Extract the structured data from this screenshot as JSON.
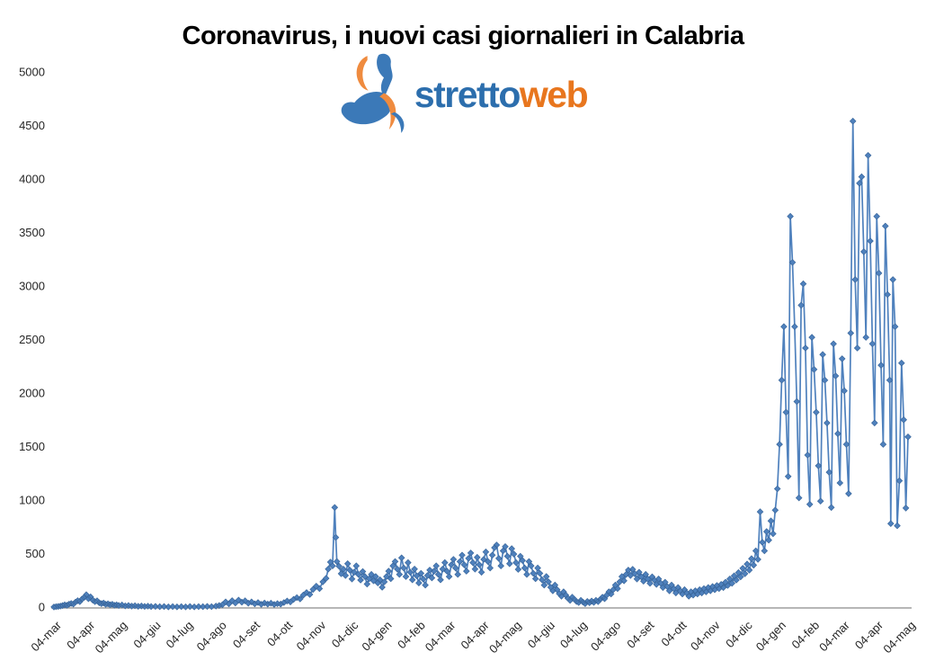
{
  "header": {
    "title": "Coronavirus, i nuovi casi giornalieri in Calabria"
  },
  "logo": {
    "text_primary": "stretto",
    "text_secondary": "web",
    "primary_color": "#2c6ead",
    "secondary_color": "#e8761e",
    "graphic_blue": "#3b79b8",
    "graphic_orange": "#ef8b3f"
  },
  "chart_data": {
    "type": "line",
    "title": "Coronavirus, i nuovi casi giornalieri in Calabria",
    "series_name": "nuovi casi giornalieri",
    "marker": "diamond",
    "line_color": "#4F81BD",
    "marker_edge_color": "#3A679C",
    "axis_line_color": "#8C8C8C",
    "label_color": "#262626",
    "grid": false,
    "legend": false,
    "ylim": [
      0,
      5000
    ],
    "y_ticks": [
      0,
      500,
      1000,
      1500,
      2000,
      2500,
      3000,
      3500,
      4000,
      4500,
      5000
    ],
    "x_tick_labels": [
      "04-mar",
      "04-apr",
      "04-mag",
      "04-giu",
      "04-lug",
      "04-ago",
      "04-set",
      "04-ott",
      "04-nov",
      "04-dic",
      "04-gen",
      "04-feb",
      "04-mar",
      "04-apr",
      "04-mag",
      "04-giu",
      "04-lug",
      "04-ago",
      "04-set",
      "04-ott",
      "04-nov",
      "04-dic",
      "04-gen",
      "04-feb",
      "04-mar",
      "04-apr",
      "04-mag"
    ],
    "x_tick_days": [
      0,
      31,
      61,
      92,
      122,
      153,
      184,
      214,
      245,
      275,
      306,
      337,
      365,
      396,
      426,
      457,
      487,
      518,
      549,
      579,
      610,
      640,
      671,
      702,
      730,
      761,
      791
    ],
    "x_max_day": 791,
    "points": [
      [
        0,
        1
      ],
      [
        2,
        3
      ],
      [
        4,
        6
      ],
      [
        6,
        9
      ],
      [
        8,
        14
      ],
      [
        10,
        20
      ],
      [
        12,
        16
      ],
      [
        14,
        27
      ],
      [
        16,
        34
      ],
      [
        18,
        28
      ],
      [
        20,
        46
      ],
      [
        22,
        60
      ],
      [
        24,
        50
      ],
      [
        26,
        75
      ],
      [
        28,
        90
      ],
      [
        30,
        115
      ],
      [
        32,
        78
      ],
      [
        34,
        95
      ],
      [
        36,
        65
      ],
      [
        38,
        50
      ],
      [
        40,
        58
      ],
      [
        42,
        40
      ],
      [
        44,
        32
      ],
      [
        46,
        38
      ],
      [
        48,
        26
      ],
      [
        50,
        30
      ],
      [
        52,
        22
      ],
      [
        54,
        26
      ],
      [
        56,
        17
      ],
      [
        58,
        21
      ],
      [
        60,
        15
      ],
      [
        63,
        19
      ],
      [
        66,
        11
      ],
      [
        69,
        14
      ],
      [
        72,
        9
      ],
      [
        75,
        12
      ],
      [
        78,
        7
      ],
      [
        81,
        10
      ],
      [
        84,
        6
      ],
      [
        87,
        8
      ],
      [
        90,
        5
      ],
      [
        94,
        6
      ],
      [
        98,
        3
      ],
      [
        102,
        5
      ],
      [
        106,
        2
      ],
      [
        110,
        4
      ],
      [
        114,
        2
      ],
      [
        118,
        4
      ],
      [
        122,
        2
      ],
      [
        126,
        5
      ],
      [
        130,
        2
      ],
      [
        134,
        4
      ],
      [
        138,
        3
      ],
      [
        142,
        6
      ],
      [
        146,
        4
      ],
      [
        150,
        9
      ],
      [
        153,
        14
      ],
      [
        156,
        22
      ],
      [
        159,
        48
      ],
      [
        162,
        30
      ],
      [
        165,
        60
      ],
      [
        168,
        38
      ],
      [
        171,
        65
      ],
      [
        174,
        45
      ],
      [
        177,
        58
      ],
      [
        180,
        36
      ],
      [
        183,
        48
      ],
      [
        186,
        30
      ],
      [
        189,
        42
      ],
      [
        192,
        26
      ],
      [
        195,
        38
      ],
      [
        198,
        28
      ],
      [
        201,
        36
      ],
      [
        204,
        24
      ],
      [
        207,
        32
      ],
      [
        210,
        28
      ],
      [
        213,
        42
      ],
      [
        216,
        56
      ],
      [
        219,
        48
      ],
      [
        222,
        72
      ],
      [
        225,
        88
      ],
      [
        228,
        76
      ],
      [
        231,
        112
      ],
      [
        234,
        135
      ],
      [
        237,
        118
      ],
      [
        240,
        165
      ],
      [
        243,
        195
      ],
      [
        246,
        172
      ],
      [
        249,
        235
      ],
      [
        252,
        268
      ],
      [
        254,
        355
      ],
      [
        256,
        420
      ],
      [
        258,
        385
      ],
      [
        260,
        930
      ],
      [
        261,
        650
      ],
      [
        262,
        425
      ],
      [
        264,
        382
      ],
      [
        266,
        312
      ],
      [
        268,
        355
      ],
      [
        270,
        295
      ],
      [
        272,
        405
      ],
      [
        274,
        345
      ],
      [
        276,
        262
      ],
      [
        278,
        325
      ],
      [
        280,
        385
      ],
      [
        282,
        305
      ],
      [
        284,
        252
      ],
      [
        286,
        332
      ],
      [
        288,
        285
      ],
      [
        290,
        215
      ],
      [
        292,
        265
      ],
      [
        294,
        305
      ],
      [
        296,
        245
      ],
      [
        298,
        285
      ],
      [
        300,
        225
      ],
      [
        302,
        255
      ],
      [
        304,
        185
      ],
      [
        306,
        235
      ],
      [
        308,
        285
      ],
      [
        310,
        335
      ],
      [
        312,
        265
      ],
      [
        314,
        385
      ],
      [
        316,
        425
      ],
      [
        318,
        355
      ],
      [
        320,
        305
      ],
      [
        322,
        460
      ],
      [
        324,
        365
      ],
      [
        326,
        285
      ],
      [
        328,
        415
      ],
      [
        330,
        325
      ],
      [
        332,
        255
      ],
      [
        334,
        355
      ],
      [
        336,
        292
      ],
      [
        338,
        225
      ],
      [
        340,
        315
      ],
      [
        342,
        262
      ],
      [
        344,
        205
      ],
      [
        346,
        295
      ],
      [
        348,
        345
      ],
      [
        350,
        272
      ],
      [
        352,
        335
      ],
      [
        354,
        385
      ],
      [
        356,
        305
      ],
      [
        358,
        255
      ],
      [
        360,
        355
      ],
      [
        362,
        415
      ],
      [
        364,
        335
      ],
      [
        366,
        285
      ],
      [
        368,
        395
      ],
      [
        370,
        445
      ],
      [
        372,
        365
      ],
      [
        374,
        305
      ],
      [
        376,
        425
      ],
      [
        378,
        485
      ],
      [
        380,
        395
      ],
      [
        382,
        335
      ],
      [
        384,
        455
      ],
      [
        386,
        505
      ],
      [
        388,
        415
      ],
      [
        390,
        355
      ],
      [
        392,
        465
      ],
      [
        394,
        395
      ],
      [
        396,
        325
      ],
      [
        398,
        445
      ],
      [
        400,
        515
      ],
      [
        402,
        425
      ],
      [
        404,
        365
      ],
      [
        406,
        485
      ],
      [
        408,
        555
      ],
      [
        410,
        580
      ],
      [
        412,
        455
      ],
      [
        414,
        385
      ],
      [
        416,
        525
      ],
      [
        418,
        565
      ],
      [
        420,
        475
      ],
      [
        422,
        405
      ],
      [
        424,
        545
      ],
      [
        426,
        495
      ],
      [
        428,
        415
      ],
      [
        430,
        352
      ],
      [
        432,
        475
      ],
      [
        434,
        435
      ],
      [
        436,
        365
      ],
      [
        438,
        305
      ],
      [
        440,
        425
      ],
      [
        442,
        385
      ],
      [
        444,
        315
      ],
      [
        446,
        265
      ],
      [
        448,
        365
      ],
      [
        450,
        315
      ],
      [
        452,
        255
      ],
      [
        454,
        205
      ],
      [
        456,
        285
      ],
      [
        458,
        235
      ],
      [
        460,
        185
      ],
      [
        462,
        152
      ],
      [
        464,
        205
      ],
      [
        466,
        162
      ],
      [
        468,
        125
      ],
      [
        470,
        102
      ],
      [
        472,
        142
      ],
      [
        474,
        112
      ],
      [
        476,
        82
      ],
      [
        478,
        62
      ],
      [
        480,
        92
      ],
      [
        482,
        72
      ],
      [
        484,
        52
      ],
      [
        486,
        42
      ],
      [
        488,
        62
      ],
      [
        490,
        46
      ],
      [
        492,
        32
      ],
      [
        494,
        52
      ],
      [
        496,
        40
      ],
      [
        498,
        56
      ],
      [
        500,
        44
      ],
      [
        502,
        62
      ],
      [
        504,
        50
      ],
      [
        506,
        72
      ],
      [
        508,
        92
      ],
      [
        510,
        78
      ],
      [
        512,
        112
      ],
      [
        514,
        142
      ],
      [
        516,
        122
      ],
      [
        518,
        162
      ],
      [
        520,
        205
      ],
      [
        522,
        172
      ],
      [
        524,
        235
      ],
      [
        526,
        285
      ],
      [
        528,
        245
      ],
      [
        530,
        305
      ],
      [
        532,
        345
      ],
      [
        534,
        295
      ],
      [
        536,
        352
      ],
      [
        538,
        312
      ],
      [
        540,
        262
      ],
      [
        542,
        325
      ],
      [
        544,
        282
      ],
      [
        546,
        242
      ],
      [
        548,
        305
      ],
      [
        550,
        262
      ],
      [
        552,
        222
      ],
      [
        554,
        282
      ],
      [
        556,
        252
      ],
      [
        558,
        212
      ],
      [
        560,
        262
      ],
      [
        562,
        222
      ],
      [
        564,
        182
      ],
      [
        566,
        232
      ],
      [
        568,
        192
      ],
      [
        570,
        152
      ],
      [
        572,
        205
      ],
      [
        574,
        172
      ],
      [
        576,
        132
      ],
      [
        578,
        182
      ],
      [
        580,
        152
      ],
      [
        582,
        122
      ],
      [
        584,
        162
      ],
      [
        586,
        132
      ],
      [
        588,
        102
      ],
      [
        590,
        142
      ],
      [
        592,
        112
      ],
      [
        594,
        152
      ],
      [
        596,
        122
      ],
      [
        598,
        162
      ],
      [
        600,
        132
      ],
      [
        602,
        172
      ],
      [
        604,
        142
      ],
      [
        606,
        182
      ],
      [
        608,
        152
      ],
      [
        610,
        192
      ],
      [
        612,
        162
      ],
      [
        614,
        202
      ],
      [
        616,
        172
      ],
      [
        618,
        212
      ],
      [
        620,
        182
      ],
      [
        622,
        232
      ],
      [
        624,
        202
      ],
      [
        626,
        262
      ],
      [
        628,
        222
      ],
      [
        630,
        292
      ],
      [
        632,
        252
      ],
      [
        634,
        322
      ],
      [
        636,
        282
      ],
      [
        638,
        362
      ],
      [
        640,
        312
      ],
      [
        642,
        402
      ],
      [
        644,
        345
      ],
      [
        646,
        452
      ],
      [
        648,
        392
      ],
      [
        650,
        525
      ],
      [
        652,
        445
      ],
      [
        654,
        890
      ],
      [
        656,
        605
      ],
      [
        658,
        525
      ],
      [
        660,
        705
      ],
      [
        662,
        625
      ],
      [
        664,
        805
      ],
      [
        666,
        685
      ],
      [
        668,
        905
      ],
      [
        670,
        1105
      ],
      [
        672,
        1520
      ],
      [
        674,
        2120
      ],
      [
        676,
        2620
      ],
      [
        678,
        1820
      ],
      [
        680,
        1220
      ],
      [
        682,
        3650
      ],
      [
        684,
        3220
      ],
      [
        686,
        2620
      ],
      [
        688,
        1920
      ],
      [
        690,
        1020
      ],
      [
        692,
        2820
      ],
      [
        694,
        3020
      ],
      [
        696,
        2420
      ],
      [
        698,
        1420
      ],
      [
        700,
        960
      ],
      [
        702,
        2520
      ],
      [
        704,
        2220
      ],
      [
        706,
        1820
      ],
      [
        708,
        1320
      ],
      [
        710,
        990
      ],
      [
        712,
        2360
      ],
      [
        714,
        2120
      ],
      [
        716,
        1720
      ],
      [
        718,
        1260
      ],
      [
        720,
        930
      ],
      [
        722,
        2460
      ],
      [
        724,
        2160
      ],
      [
        726,
        1620
      ],
      [
        728,
        1160
      ],
      [
        730,
        2320
      ],
      [
        732,
        2020
      ],
      [
        734,
        1520
      ],
      [
        736,
        1060
      ],
      [
        738,
        2560
      ],
      [
        740,
        4540
      ],
      [
        742,
        3060
      ],
      [
        744,
        2420
      ],
      [
        746,
        3960
      ],
      [
        748,
        4020
      ],
      [
        750,
        3320
      ],
      [
        752,
        2520
      ],
      [
        754,
        4220
      ],
      [
        756,
        3420
      ],
      [
        758,
        2460
      ],
      [
        760,
        1720
      ],
      [
        762,
        3650
      ],
      [
        764,
        3120
      ],
      [
        766,
        2260
      ],
      [
        768,
        1520
      ],
      [
        770,
        3560
      ],
      [
        772,
        2920
      ],
      [
        774,
        2120
      ],
      [
        775,
        780
      ],
      [
        777,
        3060
      ],
      [
        779,
        2620
      ],
      [
        781,
        760
      ],
      [
        783,
        1180
      ],
      [
        785,
        2280
      ],
      [
        787,
        1750
      ],
      [
        789,
        925
      ],
      [
        791,
        1590
      ]
    ]
  }
}
